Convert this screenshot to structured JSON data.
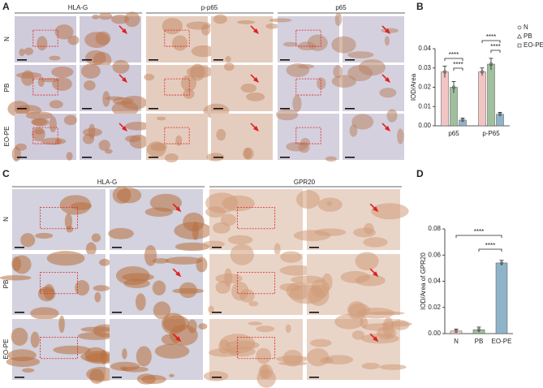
{
  "panels": [
    {
      "label": "A",
      "columns": [
        "HLA-G",
        "p-p65",
        "p65"
      ],
      "rows": [
        "N",
        "PB",
        "EO-PE"
      ]
    },
    {
      "label": "C",
      "columns": [
        "HLA-G",
        "GPR20"
      ],
      "rows": [
        "N",
        "PB",
        "EO-PE"
      ]
    }
  ],
  "chart_data": [
    {
      "type": "bar",
      "label": "B",
      "ylabel": "IOD/Area",
      "categories": [
        "p65",
        "p-P65"
      ],
      "series": [
        {
          "name": "N",
          "color": "#f2c4c4",
          "values": [
            0.028,
            0.028
          ],
          "errors": [
            0.003,
            0.002
          ]
        },
        {
          "name": "PB",
          "color": "#9fbf9d",
          "values": [
            0.02,
            0.032
          ],
          "errors": [
            0.003,
            0.003
          ]
        },
        {
          "name": "EO-PE",
          "color": "#8fb4c9",
          "values": [
            0.003,
            0.006
          ],
          "errors": [
            0.001,
            0.001
          ]
        }
      ],
      "ylim": [
        0,
        0.04
      ],
      "yticks": [
        {
          "value": 0,
          "label": "0.00"
        },
        {
          "value": 0.01,
          "label": "0.01"
        },
        {
          "value": 0.02,
          "label": "0.02"
        },
        {
          "value": 0.03,
          "label": "0.03"
        },
        {
          "value": 0.04,
          "label": "0.04"
        }
      ],
      "annotations": [
        "****",
        "****",
        "****",
        "****"
      ]
    },
    {
      "type": "bar",
      "label": "D",
      "ylabel": "IOD/Area of GPR20",
      "categories": [
        "N",
        "PB",
        "EO-PE"
      ],
      "values": [
        0.002,
        0.003,
        0.054
      ],
      "errors": [
        0.0015,
        0.002,
        0.002
      ],
      "colors": [
        "#f2c4c4",
        "#9fbf9d",
        "#8fb4c9"
      ],
      "ylim": [
        0,
        0.08
      ],
      "yticks": [
        {
          "value": 0,
          "label": "0.00"
        },
        {
          "value": 0.02,
          "label": "0.02"
        },
        {
          "value": 0.04,
          "label": "0.04"
        },
        {
          "value": 0.06,
          "label": "0.06"
        },
        {
          "value": 0.08,
          "label": "0.08"
        }
      ],
      "annotations": [
        "****",
        "****"
      ]
    }
  ]
}
